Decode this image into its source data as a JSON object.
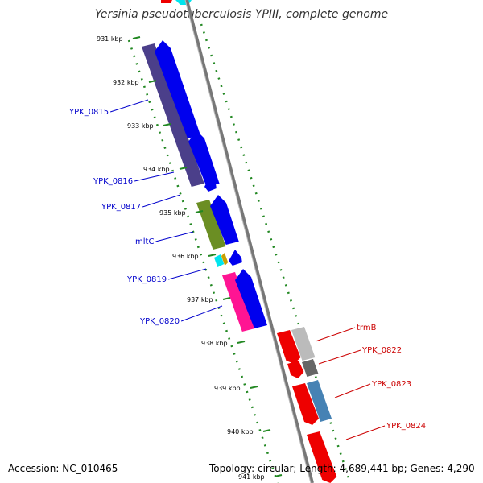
{
  "header": {
    "title": "Yersinia pseudotuberculosis YPIII, complete genome"
  },
  "footer": {
    "accession": "Accession: NC_010465",
    "stats": "Topology: circular; Length: 4,689,441 bp; Genes: 4,290"
  },
  "ticks": [
    "931 kbp",
    "932 kbp",
    "933 kbp",
    "934 kbp",
    "935 kbp",
    "936 kbp",
    "937 kbp",
    "938 kbp",
    "939 kbp",
    "940 kbp",
    "941 kbp"
  ],
  "genes_left": [
    {
      "name": "YPK_0815",
      "color": "#0000cc"
    },
    {
      "name": "YPK_0816",
      "color": "#0000cc"
    },
    {
      "name": "YPK_0817",
      "color": "#0000cc"
    },
    {
      "name": "mltC",
      "color": "#0000cc"
    },
    {
      "name": "YPK_0819",
      "color": "#0000cc"
    },
    {
      "name": "YPK_0820",
      "color": "#0000cc"
    }
  ],
  "genes_right": [
    {
      "name": "trmB",
      "color": "#cc0000"
    },
    {
      "name": "YPK_0822",
      "color": "#cc0000"
    },
    {
      "name": "YPK_0823",
      "color": "#cc0000"
    },
    {
      "name": "YPK_0824",
      "color": "#cc0000"
    }
  ],
  "colors": {
    "backbone": "#888888",
    "tick_marks": "#228822",
    "forward_gene": "#0000ee",
    "reverse_gene": "#ee0000",
    "cog_purple": "#4b3f8a",
    "cog_olive": "#6b8e23",
    "cog_cyan": "#00e5ee",
    "cog_pink": "#ff1493",
    "cog_gray": "#bbbbbb",
    "cog_darkgray": "#666666",
    "cog_steelblue": "#4682b4"
  }
}
